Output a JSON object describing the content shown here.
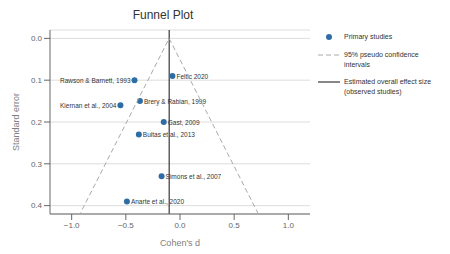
{
  "chart_data": {
    "type": "scatter",
    "title": "Funnel Plot",
    "x_label": "Cohen's d",
    "y_label": "Standard error",
    "xlim": [
      -1.2,
      1.2
    ],
    "ylim": [
      0.42,
      -0.02
    ],
    "xticks": [
      {
        "value": -1.0,
        "label": "−1.0"
      },
      {
        "value": -0.5,
        "label": "−0.5"
      },
      {
        "value": 0.0,
        "label": "0.0"
      },
      0.5,
      {
        "value": 1.0,
        "label": "1.0"
      }
    ],
    "yticks": [
      {
        "value": 0.0,
        "label": "0.0"
      },
      0.1,
      0.2,
      0.3,
      0.4
    ],
    "grid": "y",
    "series": [
      {
        "name": "Primary studies",
        "type": "scatter",
        "color": "#2e6da4",
        "marker": "circle",
        "labels": [
          "Rawson & Barnett, 1993",
          "Feltic 2020",
          "Brery & Rabian, 1999",
          "Kiernan et al., 2004",
          "Gast, 2009",
          "Buitas et al., 2013",
          "Simons et al., 2007",
          "Anarte et al., 2020"
        ],
        "x": [
          -0.42,
          -0.07,
          -0.37,
          -0.55,
          -0.15,
          -0.38,
          -0.17,
          -0.49
        ],
        "values": [
          0.1,
          0.09,
          0.15,
          0.16,
          0.2,
          0.23,
          0.33,
          0.39
        ]
      },
      {
        "name": "95% pseudo confidence\nintervals",
        "type": "line",
        "color": "#aaaaaa",
        "line_style": "dashed",
        "x": [
          0.7232,
          -0.1,
          -0.9232
        ],
        "values": [
          0.42,
          0.0,
          0.42
        ]
      },
      {
        "name": "Estimated overall effect size\n(observed studies)",
        "type": "vline",
        "color": "#111111",
        "line_style": "solid",
        "x": -0.1
      }
    ]
  }
}
